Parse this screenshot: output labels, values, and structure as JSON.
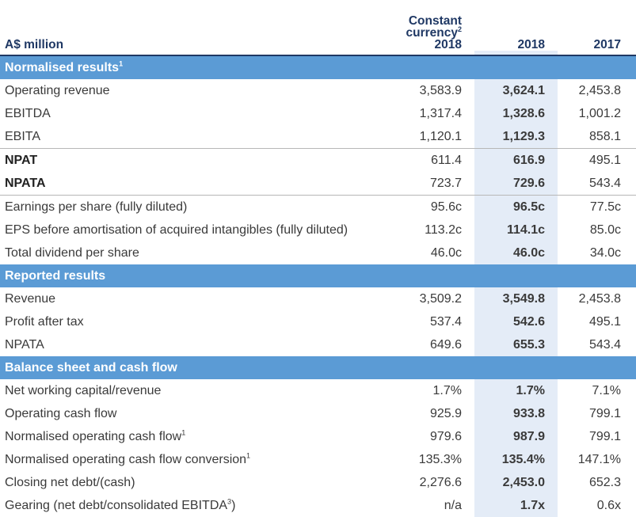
{
  "header": {
    "label": "A$ million",
    "col1_line1": "Constant",
    "col1_line2": "currency",
    "col1_line2_sup": "2",
    "col1_line3": "2018",
    "col2": "2018",
    "col3": "2017"
  },
  "sections": {
    "normalised": {
      "title": "Normalised results",
      "sup": "1"
    },
    "reported": {
      "title": "Reported results"
    },
    "balance": {
      "title": "Balance sheet and cash flow"
    }
  },
  "rows": {
    "operating_revenue": {
      "label": "Operating revenue",
      "cc": "3,583.9",
      "y2018": "3,624.1",
      "y2017": "2,453.8"
    },
    "ebitda": {
      "label": "EBITDA",
      "cc": "1,317.4",
      "y2018": "1,328.6",
      "y2017": "1,001.2"
    },
    "ebita": {
      "label": "EBITA",
      "cc": "1,120.1",
      "y2018": "1,129.3",
      "y2017": "858.1"
    },
    "npat": {
      "label": "NPAT",
      "cc": "611.4",
      "y2018": "616.9",
      "y2017": "495.1"
    },
    "npata": {
      "label": "NPATA",
      "cc": "723.7",
      "y2018": "729.6",
      "y2017": "543.4"
    },
    "eps": {
      "label": "Earnings per share (fully diluted)",
      "cc": "95.6c",
      "y2018": "96.5c",
      "y2017": "77.5c"
    },
    "eps_before": {
      "label": "EPS before amortisation of acquired intangibles (fully diluted)",
      "cc": "113.2c",
      "y2018": "114.1c",
      "y2017": "85.0c"
    },
    "total_dividend": {
      "label": "Total dividend per share",
      "cc": "46.0c",
      "y2018": "46.0c",
      "y2017": "34.0c"
    },
    "revenue": {
      "label": "Revenue",
      "cc": "3,509.2",
      "y2018": "3,549.8",
      "y2017": "2,453.8"
    },
    "profit_after_tax": {
      "label": "Profit after tax",
      "cc": "537.4",
      "y2018": "542.6",
      "y2017": "495.1"
    },
    "reported_npata": {
      "label": "NPATA",
      "cc": "649.6",
      "y2018": "655.3",
      "y2017": "543.4"
    },
    "nwc": {
      "label": "Net working capital/revenue",
      "cc": "1.7%",
      "y2018": "1.7%",
      "y2017": "7.1%"
    },
    "ocf": {
      "label": "Operating cash flow",
      "cc": "925.9",
      "y2018": "933.8",
      "y2017": "799.1"
    },
    "norm_ocf": {
      "label": "Normalised operating cash flow",
      "sup": "1",
      "cc": "979.6",
      "y2018": "987.9",
      "y2017": "799.1"
    },
    "norm_ocf_conv": {
      "label": "Normalised operating cash flow conversion",
      "sup": "1",
      "cc": "135.3%",
      "y2018": "135.4%",
      "y2017": "147.1%"
    },
    "closing_debt": {
      "label": "Closing net debt/(cash)",
      "cc": "2,276.6",
      "y2018": "2,453.0",
      "y2017": "652.3"
    },
    "gearing": {
      "label": "Gearing (net debt/consolidated EBITDA",
      "sup": "3",
      "label_end": ")",
      "cc": "n/a",
      "y2018": "1.7x",
      "y2017": "0.6x"
    }
  },
  "colors": {
    "section_bar": "#5b9bd5",
    "highlight_column": "#e4ecf7",
    "header_text": "#1f3864"
  }
}
